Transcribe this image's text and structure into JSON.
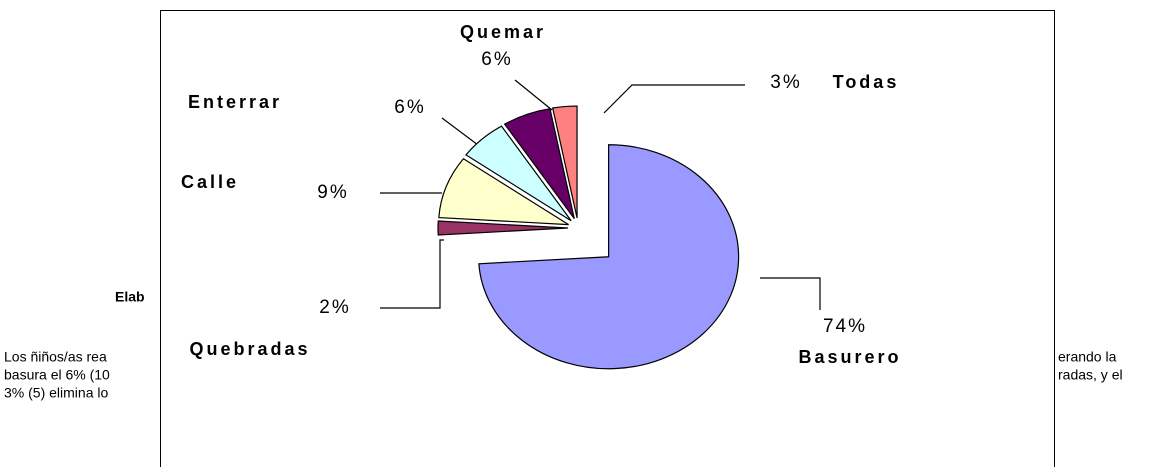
{
  "document": {
    "heading_fragment": "Elab",
    "lines_left": [
      "Los ñiños/as rea",
      "basura el 6% (10",
      "3% (5) elimina lo"
    ],
    "lines_right": [
      "erando la",
      "radas, y el"
    ]
  },
  "chart_data": {
    "type": "pie",
    "categories": [
      "Basurero",
      "Quebradas",
      "Calle",
      "Enterrar",
      "Quemar",
      "Todas"
    ],
    "values": [
      74,
      2,
      9,
      6,
      6,
      3
    ],
    "value_labels": [
      "74%",
      "2%",
      "9%",
      "6%",
      "6%",
      "3%"
    ],
    "colors": [
      "#9999ff",
      "#993366",
      "#ffffcc",
      "#ccffff",
      "#660066",
      "#ff8080"
    ]
  }
}
